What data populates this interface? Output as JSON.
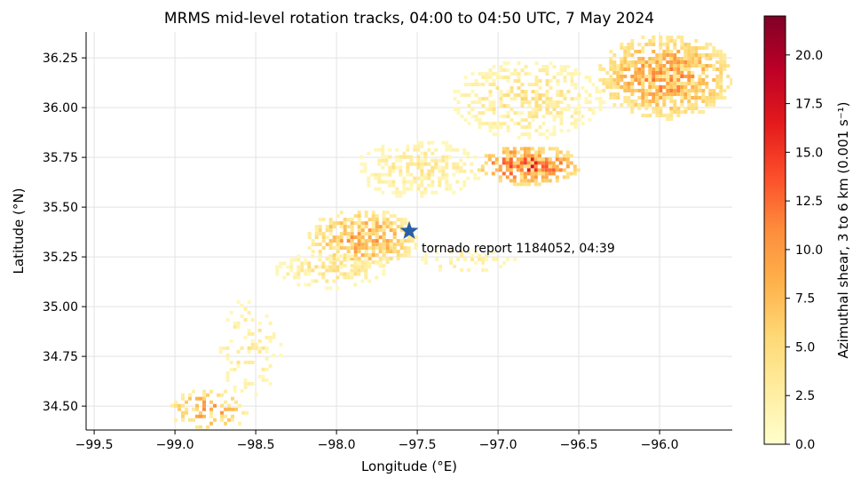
{
  "chart_data": {
    "type": "heatmap",
    "title": "MRMS mid-level rotation tracks, 04:00 to 04:50 UTC, 7 May 2024",
    "xlabel": "Longitude (°E)",
    "ylabel": "Latitude (°N)",
    "xlim": [
      -99.55,
      -95.55
    ],
    "ylim": [
      34.38,
      36.38
    ],
    "x_ticks": [
      -99.5,
      -99.0,
      -98.5,
      -98.0,
      -97.5,
      -97.0,
      -96.5,
      -96.0
    ],
    "x_tick_labels": [
      "−99.5",
      "−99.0",
      "−98.5",
      "−98.0",
      "−97.5",
      "−97.0",
      "−96.5",
      "−96.0"
    ],
    "y_ticks": [
      34.5,
      34.75,
      35.0,
      35.25,
      35.5,
      35.75,
      36.0,
      36.25
    ],
    "y_tick_labels": [
      "34.50",
      "34.75",
      "35.00",
      "35.25",
      "35.50",
      "35.75",
      "36.00",
      "36.25"
    ],
    "grid": true,
    "colorbar": {
      "label": "Azimuthal shear, 3 to 6 km (0.001 s⁻¹)",
      "colormap": "YlOrRd",
      "range": [
        0,
        22
      ],
      "ticks": [
        0,
        2.5,
        5,
        7.5,
        10,
        12.5,
        15,
        17.5,
        20
      ],
      "tick_labels": [
        "0.0",
        "2.5",
        "5.0",
        "7.5",
        "10.0",
        "12.5",
        "15.0",
        "17.5",
        "20.0"
      ]
    },
    "marker": {
      "symbol": "star",
      "color": "#2a5fa5",
      "lon": -97.55,
      "lat": 35.38,
      "label": "tornado report 1184052, 04:39"
    },
    "shear_regions": [
      {
        "lon": [
          -96.4,
          -95.55
        ],
        "lat": [
          35.95,
          36.38
        ],
        "intensity": [
          3,
          13
        ],
        "density": 0.9
      },
      {
        "lon": [
          -97.3,
          -96.35
        ],
        "lat": [
          35.85,
          36.25
        ],
        "intensity": [
          1,
          6
        ],
        "density": 0.55
      },
      {
        "lon": [
          -97.15,
          -96.5
        ],
        "lat": [
          35.62,
          35.82
        ],
        "intensity": [
          4,
          18
        ],
        "density": 0.85
      },
      {
        "lon": [
          -97.9,
          -97.1
        ],
        "lat": [
          35.55,
          35.85
        ],
        "intensity": [
          1,
          5
        ],
        "density": 0.55
      },
      {
        "lon": [
          -98.2,
          -97.5
        ],
        "lat": [
          35.2,
          35.5
        ],
        "intensity": [
          2,
          12
        ],
        "density": 0.8
      },
      {
        "lon": [
          -98.4,
          -97.7
        ],
        "lat": [
          35.1,
          35.28
        ],
        "intensity": [
          1,
          6
        ],
        "density": 0.6
      },
      {
        "lon": [
          -97.5,
          -96.9
        ],
        "lat": [
          35.18,
          35.3
        ],
        "intensity": [
          1,
          4
        ],
        "density": 0.35
      },
      {
        "lon": [
          -98.75,
          -98.35
        ],
        "lat": [
          34.55,
          35.05
        ],
        "intensity": [
          1,
          5
        ],
        "density": 0.3
      },
      {
        "lon": [
          -99.05,
          -98.55
        ],
        "lat": [
          34.38,
          34.6
        ],
        "intensity": [
          2,
          12
        ],
        "density": 0.5
      }
    ]
  }
}
